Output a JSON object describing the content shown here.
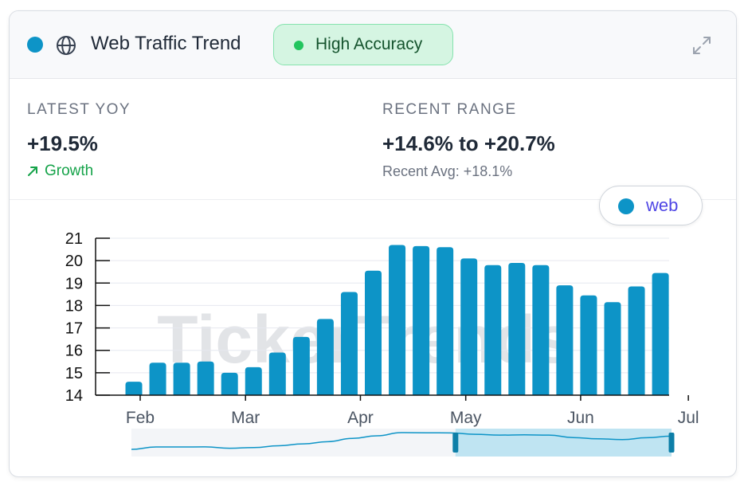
{
  "header": {
    "title": "Web Traffic Trend",
    "badge": "High Accuracy",
    "icons": [
      "status-dot",
      "globe-icon",
      "expand-icon"
    ]
  },
  "stats": {
    "latest_label": "LATEST YOY",
    "latest_value": "+19.5%",
    "trend_label": "Growth",
    "range_label": "RECENT RANGE",
    "range_value": "+14.6% to +20.7%",
    "recent_avg": "Recent Avg: +18.1%"
  },
  "legend": {
    "label": "web"
  },
  "watermark": "TickerTrends",
  "colors": {
    "bar": "#0d94c7",
    "accent_green": "#22c55e",
    "legend_text": "#4f46e5"
  },
  "chart_data": {
    "type": "bar",
    "series": [
      {
        "name": "web",
        "values": [
          14.6,
          15.45,
          15.45,
          15.5,
          15.0,
          15.25,
          15.9,
          16.6,
          17.4,
          18.6,
          19.55,
          20.7,
          20.65,
          20.6,
          20.1,
          19.8,
          19.9,
          19.8,
          18.9,
          18.45,
          18.15,
          18.85,
          19.45
        ]
      }
    ],
    "ylim": [
      14,
      21
    ],
    "yticks": [
      14,
      15,
      16,
      17,
      18,
      19,
      20,
      21
    ],
    "xtick_labels": [
      "Feb",
      "Mar",
      "Apr",
      "May",
      "Jun",
      "Jul"
    ],
    "xtick_bar_index": [
      0.6,
      5.0,
      9.8,
      14.2,
      19.0,
      23.5
    ],
    "grid": true,
    "legend_position": "top-right",
    "navigator": {
      "selected_start_fraction": 0.6,
      "selected_end_fraction": 1.0
    }
  }
}
